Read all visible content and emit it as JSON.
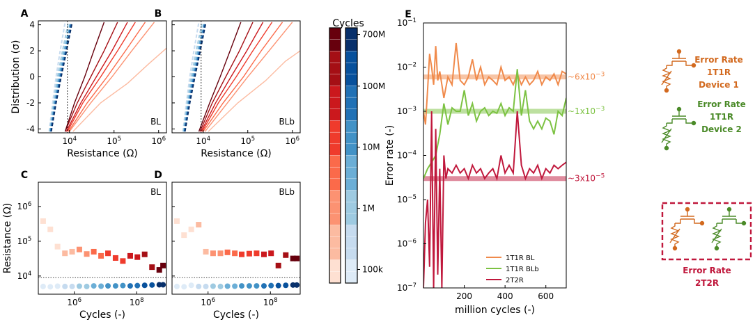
{
  "chart_data": [
    {
      "panel": "A",
      "type": "line",
      "title": "",
      "xlabel": "Resistance (Ω)",
      "ylabel": "Distribution (σ)",
      "xscale": "log",
      "xlim": [
        2000,
        1500000
      ],
      "ylim": [
        -4.3,
        4.3
      ],
      "x_ticks": [
        "10⁴",
        "10⁵",
        "10⁶"
      ],
      "y_ticks": [
        "-4",
        "-2",
        "0",
        "2",
        "4"
      ],
      "annotation": "BL",
      "threshold": 9000,
      "lrs_series": [
        {
          "cycles": "100k",
          "color": "#c6dbef",
          "x": [
            3500,
            4200,
            5000,
            6200,
            8000
          ],
          "y": [
            -4.2,
            -2,
            0,
            2,
            4.2
          ]
        },
        {
          "cycles": "1M",
          "color": "#9ecae1",
          "x": [
            3600,
            4400,
            5400,
            7000,
            9500
          ],
          "y": [
            -4.2,
            -2,
            0,
            2,
            4.2
          ]
        },
        {
          "cycles": "10M",
          "color": "#6baed6",
          "x": [
            3700,
            4600,
            5800,
            7600,
            10500
          ],
          "y": [
            -4.2,
            -2,
            0,
            2,
            4.2
          ]
        },
        {
          "cycles": "100M",
          "color": "#2171b5",
          "x": [
            3800,
            4800,
            6200,
            8200,
            11000
          ],
          "y": [
            -4.2,
            -2,
            0,
            2,
            4.2
          ]
        },
        {
          "cycles": "700M",
          "color": "#08306b",
          "x": [
            3900,
            5000,
            6500,
            8600,
            11500
          ],
          "y": [
            -4.2,
            -2,
            0,
            2,
            4.2
          ]
        }
      ],
      "hrs_series": [
        {
          "cycles": "100k",
          "color": "#fcbba1",
          "x": [
            12000,
            50000,
            200000,
            600000,
            1500000
          ],
          "y": [
            -4.2,
            -2,
            -0.5,
            1,
            2.2
          ]
        },
        {
          "cycles": "300k",
          "color": "#fc9272",
          "x": [
            10000,
            30000,
            90000,
            250000,
            800000
          ],
          "y": [
            -4.2,
            -2,
            0,
            2,
            4.2
          ]
        },
        {
          "cycles": "1M",
          "color": "#fb6a4a",
          "x": [
            9500,
            25000,
            70000,
            180000,
            500000
          ],
          "y": [
            -4.2,
            -2,
            0,
            2,
            4.2
          ]
        },
        {
          "cycles": "10M",
          "color": "#ef3b2c",
          "x": [
            9000,
            20000,
            50000,
            120000,
            300000
          ],
          "y": [
            -4.2,
            -2,
            0,
            2,
            4.2
          ]
        },
        {
          "cycles": "30M",
          "color": "#cb181d",
          "x": [
            8500,
            18000,
            40000,
            90000,
            200000
          ],
          "y": [
            -4.2,
            -2,
            0,
            2,
            4.2
          ]
        },
        {
          "cycles": "100M",
          "color": "#a50f15",
          "x": [
            8000,
            15000,
            30000,
            60000,
            120000
          ],
          "y": [
            -4.2,
            -2,
            0,
            2,
            4.2
          ]
        },
        {
          "cycles": "700M",
          "color": "#67000d",
          "x": [
            8000,
            13000,
            22000,
            35000,
            60000
          ],
          "y": [
            -4.2,
            -2,
            0,
            2,
            4.2
          ]
        }
      ]
    },
    {
      "panel": "B",
      "type": "line",
      "title": "",
      "xlabel": "Resistance (Ω)",
      "ylabel": "",
      "xscale": "log",
      "xlim": [
        2000,
        1500000
      ],
      "ylim": [
        -4.3,
        4.3
      ],
      "x_ticks": [
        "10⁴",
        "10⁵",
        "10⁶"
      ],
      "annotation": "BLb",
      "threshold": 9000,
      "lrs_series": [
        {
          "cycles": "100k",
          "color": "#c6dbef",
          "x": [
            3500,
            4200,
            5000,
            6200,
            8000
          ],
          "y": [
            -4.2,
            -2,
            0,
            2,
            4.2
          ]
        },
        {
          "cycles": "1M",
          "color": "#9ecae1",
          "x": [
            3600,
            4400,
            5400,
            7000,
            9500
          ],
          "y": [
            -4.2,
            -2,
            0,
            2,
            4.2
          ]
        },
        {
          "cycles": "10M",
          "color": "#6baed6",
          "x": [
            3700,
            4600,
            5800,
            7600,
            10500
          ],
          "y": [
            -4.2,
            -2,
            0,
            2,
            4.2
          ]
        },
        {
          "cycles": "100M",
          "color": "#2171b5",
          "x": [
            3800,
            4800,
            6200,
            8200,
            11000
          ],
          "y": [
            -4.2,
            -2,
            0,
            2,
            4.2
          ]
        },
        {
          "cycles": "700M",
          "color": "#08306b",
          "x": [
            3900,
            5000,
            6500,
            8600,
            11500
          ],
          "y": [
            -4.2,
            -2,
            0,
            2,
            4.2
          ]
        }
      ],
      "hrs_series": [
        {
          "cycles": "100k",
          "color": "#fcbba1",
          "x": [
            13000,
            60000,
            250000,
            700000,
            1500000
          ],
          "y": [
            -4.2,
            -2,
            -0.3,
            1.2,
            2
          ]
        },
        {
          "cycles": "300k",
          "color": "#fc9272",
          "x": [
            11000,
            35000,
            100000,
            300000,
            1000000
          ],
          "y": [
            -4.2,
            -2,
            0,
            2,
            4.2
          ]
        },
        {
          "cycles": "1M",
          "color": "#fb6a4a",
          "x": [
            10000,
            28000,
            80000,
            200000,
            600000
          ],
          "y": [
            -4.2,
            -2,
            0,
            2,
            4.2
          ]
        },
        {
          "cycles": "10M",
          "color": "#ef3b2c",
          "x": [
            9500,
            22000,
            55000,
            130000,
            350000
          ],
          "y": [
            -4.2,
            -2,
            0,
            2,
            4.2
          ]
        },
        {
          "cycles": "30M",
          "color": "#cb181d",
          "x": [
            9000,
            19000,
            42000,
            95000,
            220000
          ],
          "y": [
            -4.2,
            -2,
            0,
            2,
            4.2
          ]
        },
        {
          "cycles": "100M",
          "color": "#a50f15",
          "x": [
            8500,
            16000,
            32000,
            65000,
            130000
          ],
          "y": [
            -4.2,
            -2,
            0,
            2,
            4.2
          ]
        },
        {
          "cycles": "700M",
          "color": "#67000d",
          "x": [
            8000,
            14000,
            24000,
            40000,
            70000
          ],
          "y": [
            -4.2,
            -2,
            0,
            2,
            4.2
          ]
        }
      ]
    },
    {
      "panel": "C",
      "type": "scatter",
      "title": "",
      "xlabel": "Cycles (-)",
      "ylabel": "Resistance (Ω)",
      "xscale": "log",
      "yscale": "log",
      "xlim": [
        70000,
        900000000
      ],
      "ylim": [
        3000,
        5000000
      ],
      "x_ticks": [
        "10⁶",
        "10⁸"
      ],
      "y_ticks": [
        "10⁴",
        "10⁵",
        "10⁶"
      ],
      "annotation": "BL",
      "threshold": 9000,
      "hrs": {
        "x": [
          100000,
          170000,
          290000,
          500000,
          850000,
          1450000,
          2500000,
          4200000,
          7200000,
          12000000,
          21000000,
          36000000,
          62000000,
          105000000,
          180000000,
          310000000,
          530000000,
          700000000
        ],
        "y": [
          380000,
          220000,
          70000,
          45000,
          50000,
          58000,
          43000,
          50000,
          38000,
          45000,
          33000,
          27000,
          38000,
          35000,
          42000,
          18000,
          15000,
          20000
        ]
      },
      "lrs": {
        "x": [
          100000,
          170000,
          290000,
          500000,
          850000,
          1450000,
          2500000,
          4200000,
          7200000,
          12000000,
          21000000,
          36000000,
          62000000,
          105000000,
          180000000,
          310000000,
          530000000,
          700000000
        ],
        "y": [
          5000,
          4900,
          5100,
          5000,
          5000,
          5100,
          5000,
          5200,
          5100,
          5200,
          5200,
          5300,
          5200,
          5300,
          5400,
          5500,
          5600,
          5600
        ]
      }
    },
    {
      "panel": "D",
      "type": "scatter",
      "title": "",
      "xlabel": "Cycles (-)",
      "ylabel": "",
      "xscale": "log",
      "yscale": "log",
      "xlim": [
        70000,
        900000000
      ],
      "ylim": [
        3000,
        5000000
      ],
      "x_ticks": [
        "10⁶",
        "10⁸"
      ],
      "annotation": "BLb",
      "threshold": 9000,
      "hrs": {
        "x": [
          100000,
          170000,
          290000,
          500000,
          850000,
          1450000,
          2500000,
          4200000,
          7200000,
          12000000,
          21000000,
          36000000,
          62000000,
          105000000,
          180000000,
          310000000,
          530000000,
          700000000
        ],
        "y": [
          380000,
          150000,
          220000,
          300000,
          50000,
          45000,
          45000,
          48000,
          45000,
          42000,
          44000,
          45000,
          42000,
          45000,
          20000,
          40000,
          32000,
          32000
        ]
      },
      "lrs": {
        "x": [
          100000,
          170000,
          290000,
          500000,
          850000,
          1450000,
          2500000,
          4200000,
          7200000,
          12000000,
          21000000,
          36000000,
          62000000,
          105000000,
          180000000,
          310000000,
          530000000,
          700000000
        ],
        "y": [
          5000,
          4900,
          5400,
          5000,
          5000,
          5100,
          5000,
          5100,
          5100,
          5200,
          5200,
          5200,
          5200,
          5300,
          5300,
          5400,
          5500,
          5500
        ]
      }
    },
    {
      "panel": "colorbar",
      "type": "heatmap",
      "title": "Cycles",
      "tick_labels": [
        "700M",
        "100M",
        "10M",
        "1M",
        "100k"
      ],
      "ticks_log_cycles": [
        700000000,
        100000000,
        10000000,
        1000000,
        100000
      ],
      "range": [
        60000,
        900000000
      ],
      "red_colors": [
        "#fee0d2",
        "#fcbba1",
        "#fc9272",
        "#fb6a4a",
        "#ef3b2c",
        "#cb181d",
        "#a50f15",
        "#67000d"
      ],
      "blue_colors": [
        "#deebf7",
        "#c6dbef",
        "#9ecae1",
        "#6baed6",
        "#4292c6",
        "#2171b5",
        "#08519c",
        "#08306b"
      ]
    },
    {
      "panel": "E",
      "type": "line",
      "title": "",
      "xlabel": "million cycles (-)",
      "ylabel": "Error rate (-)",
      "xscale": "linear",
      "yscale": "log",
      "xlim": [
        0,
        700
      ],
      "ylim": [
        1e-07,
        0.1
      ],
      "x_ticks": [
        "200",
        "400",
        "600"
      ],
      "y_ticks": [
        "10⁻⁷",
        "10⁻⁶",
        "10⁻⁵",
        "10⁻⁴",
        "10⁻³",
        "10⁻²",
        "10⁻¹"
      ],
      "series": [
        {
          "name": "1T1R BL",
          "color": "#f08a4b",
          "x": [
            0,
            10,
            20,
            30,
            40,
            50,
            60,
            70,
            80,
            90,
            100,
            120,
            140,
            160,
            180,
            200,
            220,
            240,
            260,
            280,
            300,
            320,
            340,
            360,
            380,
            400,
            420,
            440,
            460,
            480,
            500,
            520,
            540,
            560,
            580,
            600,
            620,
            640,
            660,
            680,
            700
          ],
          "y": [
            0.001,
            0.0005,
            0.003,
            0.02,
            0.01,
            0.004,
            0.03,
            0.005,
            0.008,
            0.004,
            0.002,
            0.006,
            0.004,
            0.035,
            0.005,
            0.004,
            0.006,
            0.015,
            0.005,
            0.01,
            0.004,
            0.006,
            0.005,
            0.004,
            0.01,
            0.005,
            0.006,
            0.004,
            0.007,
            0.004,
            0.006,
            0.004,
            0.005,
            0.008,
            0.004,
            0.006,
            0.005,
            0.007,
            0.004,
            0.008,
            0.007
          ]
        },
        {
          "name": "1T1R BLb",
          "color": "#7cc242",
          "x": [
            0,
            20,
            40,
            60,
            80,
            100,
            120,
            140,
            160,
            180,
            200,
            220,
            240,
            260,
            280,
            300,
            320,
            340,
            360,
            380,
            400,
            420,
            440,
            460,
            480,
            500,
            520,
            540,
            560,
            580,
            600,
            620,
            640,
            660,
            680,
            700
          ],
          "y": [
            3e-05,
            5e-05,
            7e-05,
            0.0001,
            0.0003,
            0.0015,
            0.0005,
            0.0012,
            0.001,
            0.001,
            0.003,
            0.0008,
            0.0015,
            0.0006,
            0.001,
            0.0012,
            0.0008,
            0.001,
            0.0009,
            0.0015,
            0.0008,
            0.0012,
            0.001,
            0.009,
            0.0008,
            0.003,
            0.0006,
            0.0004,
            0.0006,
            0.0004,
            0.0007,
            0.0006,
            0.0003,
            0.001,
            0.0008,
            0.002
          ]
        },
        {
          "name": "2T2R",
          "color": "#c0183c",
          "x": [
            0,
            10,
            20,
            30,
            40,
            50,
            60,
            70,
            80,
            90,
            100,
            110,
            120,
            140,
            160,
            180,
            200,
            220,
            240,
            260,
            280,
            300,
            320,
            340,
            360,
            380,
            400,
            420,
            440,
            460,
            480,
            500,
            520,
            540,
            560,
            580,
            600,
            620,
            640,
            660,
            680,
            700
          ],
          "y": [
            1e-07,
            3e-06,
            1e-05,
            3e-07,
            0.001,
            1e-07,
            0.0004,
            2e-07,
            5e-05,
            1e-07,
            0.0001,
            3e-05,
            5e-05,
            4e-05,
            6e-05,
            4e-05,
            5e-05,
            3e-05,
            6e-05,
            4e-05,
            5e-05,
            3e-05,
            4e-05,
            5e-05,
            3e-05,
            0.0001,
            4e-05,
            6e-05,
            4e-05,
            0.001,
            6e-05,
            3e-05,
            5e-05,
            4e-05,
            6e-05,
            3e-05,
            5e-05,
            4e-05,
            6e-05,
            5e-05,
            6e-05,
            7e-05
          ]
        }
      ],
      "reference_lines": [
        {
          "value": 0.006,
          "label": "~6x10⁻³",
          "color": "#f08a4b"
        },
        {
          "value": 0.001,
          "label": "~1x10⁻³",
          "color": "#7cc242"
        },
        {
          "value": 3e-05,
          "label": "~3x10⁻⁵",
          "color": "#c0183c"
        }
      ],
      "legend_position": "bottom-right"
    }
  ],
  "labels": {
    "panel_A": "A",
    "panel_B": "B",
    "panel_C": "C",
    "panel_D": "D",
    "panel_E": "E",
    "colorbar_title": "Cycles"
  },
  "schematic": {
    "device1_title": "Error Rate\n1T1R\nDevice 1",
    "device2_title": "Error Rate\n1T1R\nDevice 2",
    "pair_title": "Error Rate\n2T2R",
    "device1_color": "#d2691e",
    "device2_color": "#4a8a28",
    "pair_color": "#c0183c"
  }
}
